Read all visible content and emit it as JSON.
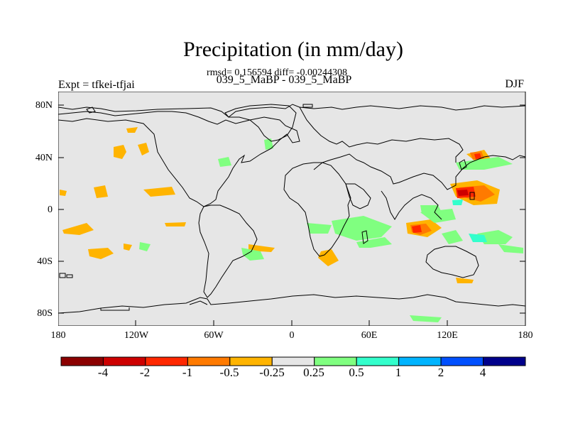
{
  "header": {
    "title": "Precipitation (in mm/day)",
    "stats": "rmsd= 0.156594 diff= -0.00244308",
    "subtitle": "039_5_MaBP - 039_5_MaBP",
    "expt": "Expt = tfkei-tfjai",
    "season": "DJF"
  },
  "axes": {
    "y_ticks": [
      "80N",
      "40N",
      "0",
      "40S",
      "80S"
    ],
    "x_ticks": [
      "180",
      "120W",
      "60W",
      "0",
      "60E",
      "120E",
      "180"
    ]
  },
  "colorbar": {
    "colors": [
      "#8b0000",
      "#cd0000",
      "#ff2800",
      "#ff7a00",
      "#ffb400",
      "#e6e6e6",
      "#80ff80",
      "#33ffcc",
      "#00b4ff",
      "#0050ff",
      "#00008b"
    ],
    "labels": [
      "-4",
      "-2",
      "-1",
      "-0.5",
      "-0.25",
      "0.25",
      "0.5",
      "1",
      "2",
      "4"
    ]
  },
  "map": {
    "background": "#e6e6e6",
    "coast": "#000000"
  }
}
